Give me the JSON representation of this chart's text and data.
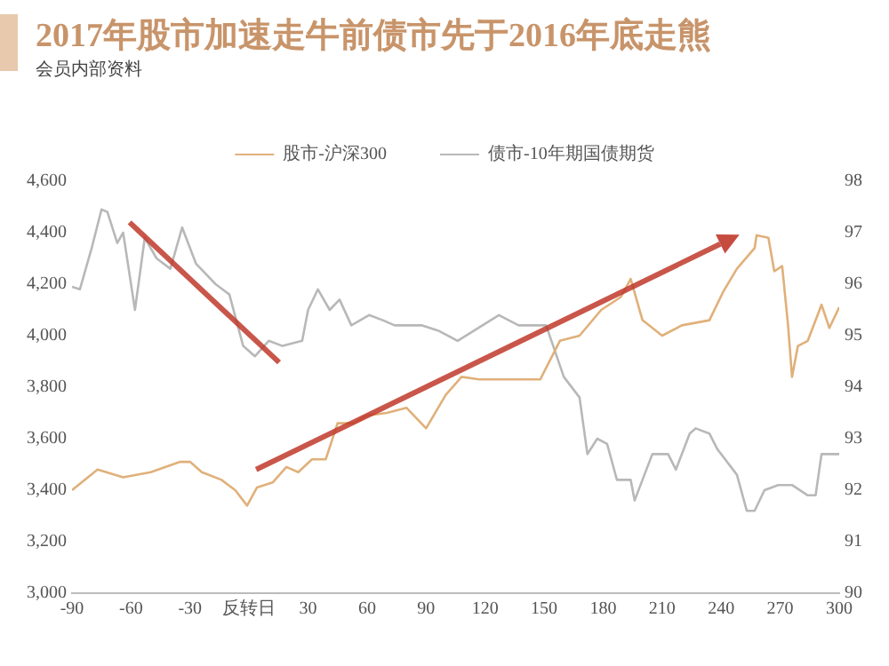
{
  "chart_data": {
    "type": "line",
    "title": "2017年股市加速走牛前债市先于2016年底走熊",
    "subtitle": "会员内部资料",
    "series": [
      {
        "name": "股市-沪深300",
        "color": "#e0b07a",
        "x": [
          -90,
          -77,
          -64,
          -50,
          -35,
          -30,
          -24,
          -14,
          -7,
          -1,
          4,
          12,
          19,
          25,
          32,
          39,
          45,
          53,
          60,
          70,
          80,
          90,
          100,
          108,
          117,
          148,
          158,
          168,
          179,
          189,
          194,
          200,
          210,
          220,
          234,
          241,
          248,
          257,
          258,
          264,
          267,
          271,
          274,
          276,
          279,
          284,
          291,
          295,
          300
        ],
        "values": [
          3400,
          3480,
          3450,
          3470,
          3510,
          3510,
          3470,
          3440,
          3400,
          3340,
          3410,
          3430,
          3490,
          3470,
          3520,
          3520,
          3660,
          3660,
          3690,
          3700,
          3720,
          3640,
          3770,
          3840,
          3830,
          3830,
          3980,
          4000,
          4100,
          4150,
          4220,
          4060,
          4000,
          4040,
          4060,
          4170,
          4260,
          4340,
          4390,
          4380,
          4250,
          4270,
          4040,
          3840,
          3960,
          3980,
          4120,
          4030,
          4110
        ]
      },
      {
        "name": "债市-10年期国债期货",
        "color": "#b8b8b8",
        "axis": "y2",
        "x": [
          -90,
          -86,
          -80,
          -75,
          -72,
          -67,
          -64,
          -58,
          -53,
          -47,
          -40,
          -34,
          -27,
          -17,
          -10,
          -3,
          3,
          10,
          17,
          27,
          30,
          35,
          41,
          46,
          52,
          61,
          68,
          74,
          88,
          96,
          106,
          127,
          137,
          151,
          160,
          168,
          172,
          177,
          182,
          187,
          194,
          196,
          200,
          205,
          213,
          217,
          224,
          227,
          234,
          238,
          248,
          253,
          257,
          262,
          269,
          276,
          284,
          288,
          291,
          300
        ],
        "values": [
          95.95,
          95.9,
          96.7,
          97.45,
          97.4,
          96.8,
          97.0,
          95.5,
          96.9,
          96.5,
          96.3,
          97.1,
          96.4,
          96.0,
          95.8,
          94.8,
          94.6,
          94.9,
          94.8,
          94.9,
          95.5,
          95.9,
          95.5,
          95.7,
          95.2,
          95.4,
          95.3,
          95.2,
          95.2,
          95.1,
          94.9,
          95.4,
          95.2,
          95.2,
          94.2,
          93.8,
          92.7,
          93.0,
          92.9,
          92.2,
          92.2,
          91.8,
          92.2,
          92.7,
          92.7,
          92.4,
          93.1,
          93.2,
          93.1,
          92.8,
          92.3,
          91.6,
          91.6,
          92.0,
          92.1,
          92.1,
          91.9,
          91.9,
          92.7,
          92.7
        ]
      }
    ],
    "xlim": [
      -90,
      300
    ],
    "xticks": [
      -90,
      -60,
      -30,
      {
        "value": 0,
        "label": "反转日"
      },
      30,
      60,
      90,
      120,
      150,
      180,
      210,
      240,
      270,
      300
    ],
    "ylim": [
      3000,
      4600
    ],
    "yticks": [
      {
        "value": 3000,
        "label": "3,000"
      },
      {
        "value": 3200,
        "label": "3,200"
      },
      {
        "value": 3400,
        "label": "3,400"
      },
      {
        "value": 3600,
        "label": "3,600"
      },
      {
        "value": 3800,
        "label": "3,800"
      },
      {
        "value": 4000,
        "label": "4,000"
      },
      {
        "value": 4200,
        "label": "4,200"
      },
      {
        "value": 4400,
        "label": "4,400"
      },
      {
        "value": 4600,
        "label": "4,600"
      }
    ],
    "y2lim": [
      90,
      98
    ],
    "y2ticks": [
      90,
      91,
      92,
      93,
      94,
      95,
      96,
      97,
      98
    ],
    "grid": false,
    "legend": "top",
    "marker": "none",
    "line_style": "solid"
  }
}
